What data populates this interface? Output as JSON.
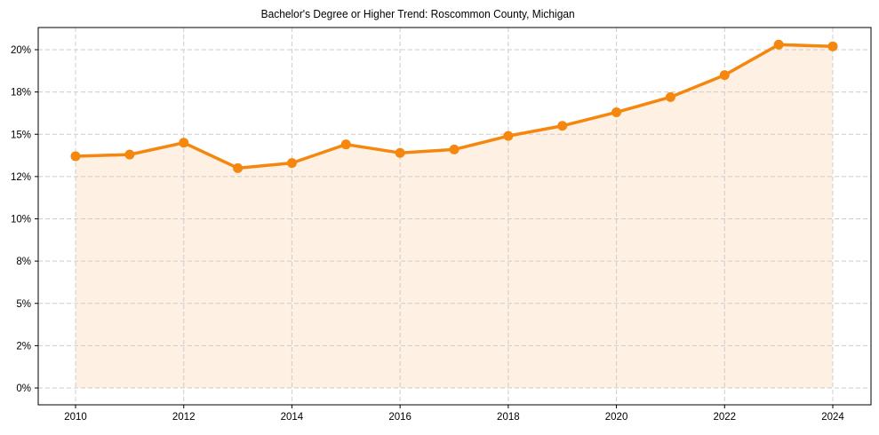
{
  "chart_data": {
    "type": "line",
    "title": "Bachelor's Degree or Higher Trend: Roscommon County, Michigan",
    "xlabel": "",
    "ylabel": "",
    "x": [
      2010,
      2011,
      2012,
      2013,
      2014,
      2015,
      2016,
      2017,
      2018,
      2019,
      2020,
      2021,
      2022,
      2023,
      2024
    ],
    "series": [
      {
        "name": "Bachelor's Degree or Higher (%)",
        "values": [
          13.7,
          13.8,
          14.5,
          13.0,
          13.3,
          14.4,
          13.9,
          14.1,
          14.9,
          15.5,
          16.3,
          17.2,
          18.5,
          20.3,
          20.2
        ],
        "color": "#F5870E",
        "fill_color": "#FEF0E2",
        "marker": "circle"
      }
    ],
    "ylim": [
      -0.8,
      21.3
    ],
    "xlim": [
      2009.3,
      2024.7
    ],
    "y_ticks": [
      0,
      2.5,
      5,
      7.5,
      10,
      12.5,
      15,
      17.5,
      20
    ],
    "y_tick_labels": [
      "0%",
      "2%",
      "5%",
      "8%",
      "10%",
      "12%",
      "15%",
      "18%",
      "20%"
    ],
    "x_ticks": [
      2010,
      2012,
      2014,
      2016,
      2018,
      2020,
      2022,
      2024
    ],
    "x_tick_labels": [
      "2010",
      "2012",
      "2014",
      "2016",
      "2018",
      "2020",
      "2022",
      "2024"
    ],
    "grid": true,
    "grid_style": "dashed",
    "legend": null,
    "area_fill": true
  },
  "colors": {
    "line": "#F5870E",
    "fill": "#FEF0E2",
    "grid": "#CCCCCC",
    "axis": "#000000"
  }
}
